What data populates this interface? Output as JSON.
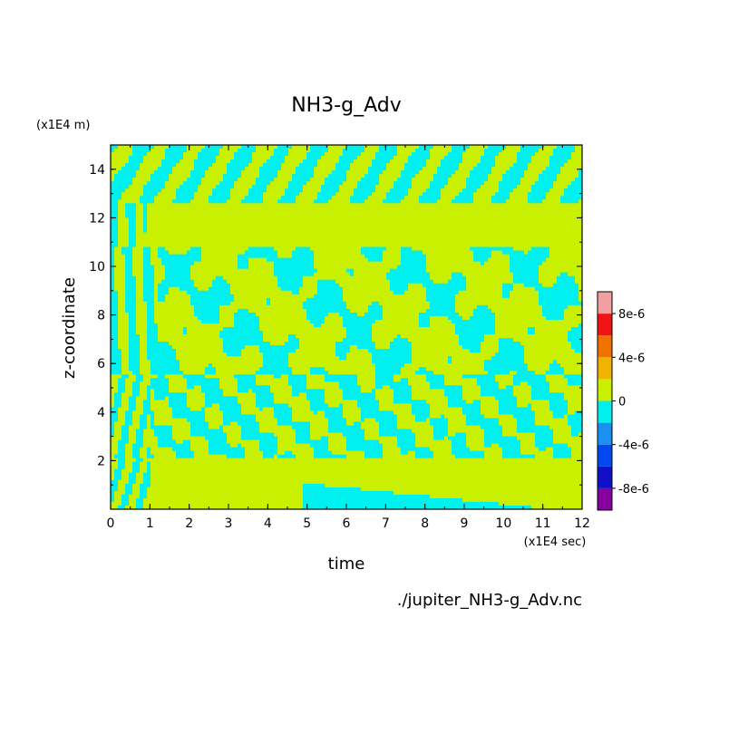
{
  "chart_data": {
    "type": "heatmap",
    "title": "NH3-g_Adv",
    "xlabel": "time",
    "ylabel": "z-coordinate",
    "x_unit": "(x1E4 sec)",
    "y_unit": "(x1E4 m)",
    "xlim": [
      0,
      12
    ],
    "ylim": [
      0,
      15
    ],
    "x_ticks": [
      "0",
      "1",
      "2",
      "3",
      "4",
      "5",
      "6",
      "7",
      "8",
      "9",
      "10",
      "11",
      "12"
    ],
    "y_ticks": [
      "2",
      "4",
      "6",
      "8",
      "10",
      "12",
      "14"
    ],
    "x_tick_values": [
      0,
      1,
      2,
      3,
      4,
      5,
      6,
      7,
      8,
      9,
      10,
      11,
      12
    ],
    "y_tick_values": [
      2,
      4,
      6,
      8,
      10,
      12,
      14
    ],
    "colorbar": {
      "levels": [
        -1e-05,
        -8e-06,
        -6e-06,
        -4e-06,
        -2e-06,
        0,
        2e-06,
        4e-06,
        6e-06,
        8e-06,
        1e-05
      ],
      "colors": [
        "#8800a0",
        "#1010c8",
        "#0048f0",
        "#1c90f0",
        "#00f0f0",
        "#c8f000",
        "#f0b400",
        "#f07000",
        "#f01414",
        "#f0a0a0"
      ],
      "tick_labels": [
        "8e-6",
        "4e-6",
        "0",
        "-4e-6",
        "-8e-6"
      ],
      "tick_values": [
        8e-06,
        4e-06,
        0,
        -4e-06,
        -8e-06
      ]
    },
    "dominant_colors": {
      "positive_small": "#c8f000",
      "negative_small": "#00f0f0"
    },
    "source_file": "./jupiter_NH3-g_Adv.nc"
  }
}
